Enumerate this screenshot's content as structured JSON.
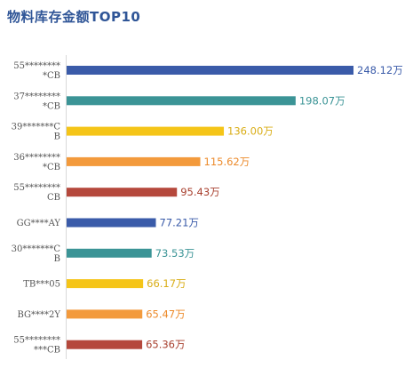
{
  "chart_data": {
    "type": "bar",
    "orientation": "horizontal",
    "title": "物料库存金额TOP10",
    "xlabel": "",
    "ylabel": "",
    "grid": false,
    "legend": "none",
    "value_suffix": "万",
    "xlim": [
      0,
      248.12
    ],
    "categories": [
      [
        "55********",
        "*CB"
      ],
      [
        "37********",
        "*CB"
      ],
      [
        "39*******C",
        "B"
      ],
      [
        "36********",
        "*CB"
      ],
      [
        "55********",
        "CB"
      ],
      [
        "GG****AY"
      ],
      [
        "30*******C",
        "B"
      ],
      [
        "TB***05"
      ],
      [
        "BG****2Y"
      ],
      [
        "55********",
        "***CB"
      ]
    ],
    "values": [
      248.12,
      198.07,
      136.0,
      115.62,
      95.43,
      77.21,
      73.53,
      66.17,
      65.47,
      65.36
    ],
    "value_labels": [
      "248.12万",
      "198.07万",
      "136.00万",
      "115.62万",
      "95.43万",
      "77.21万",
      "73.53万",
      "66.17万",
      "65.47万",
      "65.36万"
    ],
    "colors": [
      "#3a5ba9",
      "#3b9496",
      "#f5c518",
      "#f39a3c",
      "#b5483c",
      "#3a5ba9",
      "#3b9496",
      "#f5c518",
      "#f39a3c",
      "#b5483c"
    ],
    "label_colors": [
      "#3a5ba9",
      "#3b9496",
      "#d9ad16",
      "#ec8a2a",
      "#a8402f",
      "#3a5ba9",
      "#3b9496",
      "#d9ad16",
      "#ec8a2a",
      "#a8402f"
    ]
  }
}
